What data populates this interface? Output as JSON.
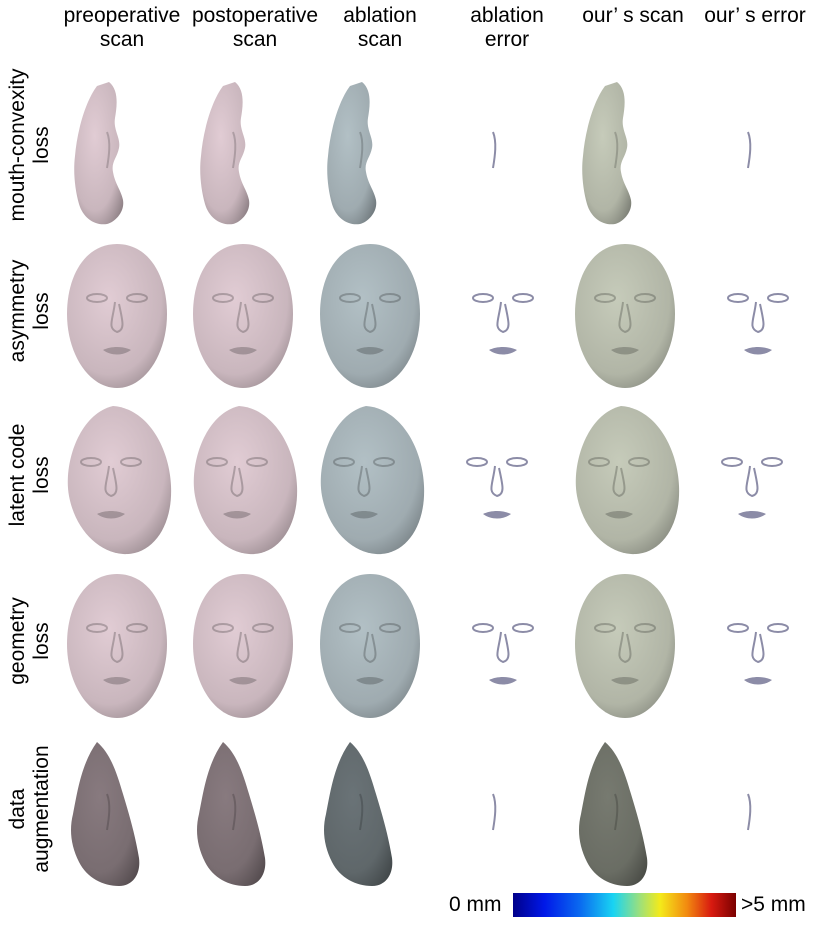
{
  "columns": [
    {
      "line1": "preoperative",
      "line2": "scan"
    },
    {
      "line1": "postoperative",
      "line2": "scan"
    },
    {
      "line1": "ablation",
      "line2": "scan"
    },
    {
      "line1": "ablation",
      "line2": "error"
    },
    {
      "line1": "our’ s scan",
      "line2": ""
    },
    {
      "line1": "our’ s error",
      "line2": ""
    }
  ],
  "rows": [
    {
      "line1": "mouth-convexity",
      "line2": "loss",
      "view": "profile"
    },
    {
      "line1": "asymmetry",
      "line2": "loss",
      "view": "frontal"
    },
    {
      "line1": "latent code",
      "line2": "loss",
      "view": "three-quarter"
    },
    {
      "line1": "geometry",
      "line2": "loss",
      "view": "frontal"
    },
    {
      "line1": "data",
      "line2": "augmentation",
      "view": "profile-dark"
    }
  ],
  "colors": {
    "preoperative": "#c9b6bd",
    "postoperative": "#c9b6bd",
    "ablation": "#9fabb0",
    "ours": "#b1b5a6",
    "error_low": "#0010d0",
    "error_high": "#8b0000"
  },
  "legend": {
    "min_label": "0 mm",
    "max_label": ">5 mm"
  }
}
